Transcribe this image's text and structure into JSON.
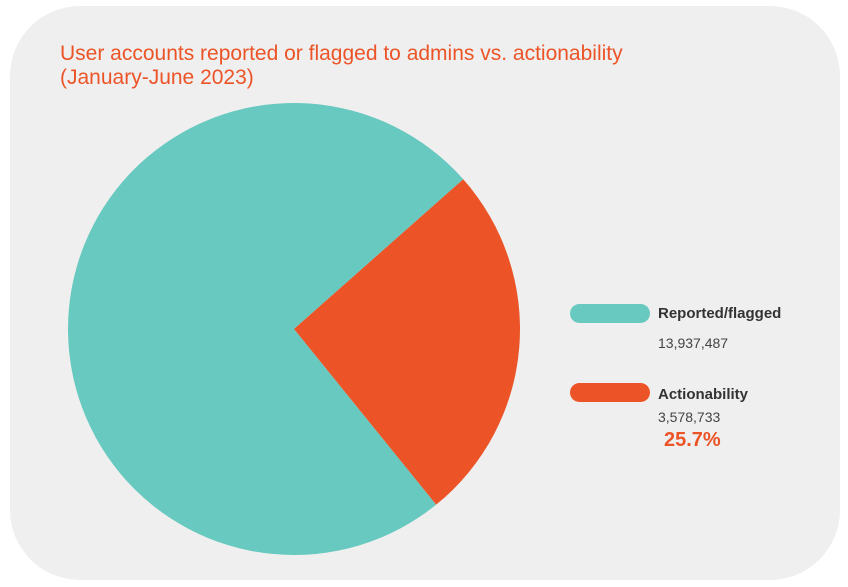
{
  "chart_data": {
    "type": "pie",
    "title": "User accounts reported or flagged to admins vs. actionability",
    "subtitle": "(January-June 2023)",
    "slices": [
      {
        "name": "Reported/flagged",
        "value": 13937487,
        "label": "13,937,487",
        "color": "#67c9bf"
      },
      {
        "name": "Actionability",
        "value": 3578733,
        "label": "3,578,733",
        "percent_label": "25.7%",
        "color": "#ec5427"
      }
    ],
    "actionability_fraction": 0.257,
    "legend_position": "right"
  }
}
